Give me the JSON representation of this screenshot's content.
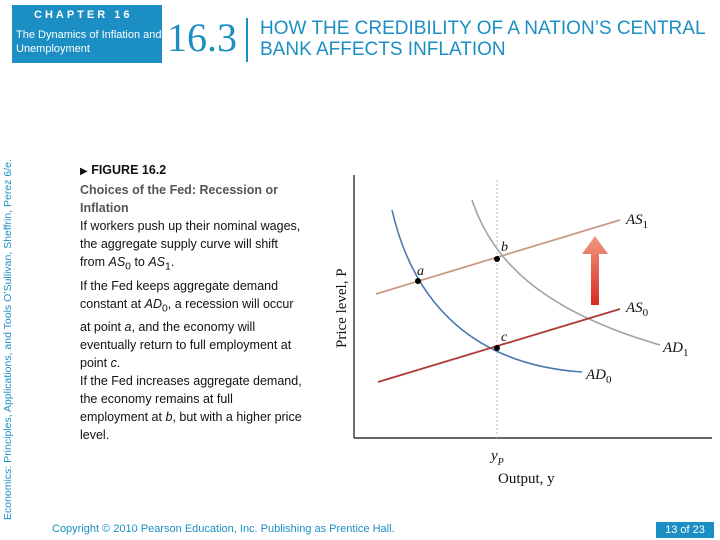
{
  "header": {
    "chapter_label": "CHAPTER 16",
    "chapter_subtitle": "The Dynamics of Inflation and Unemployment",
    "section_number": "16.3",
    "section_title": "HOW THE CREDIBILITY OF A NATION’S CENTRAL BANK AFFECTS INFLATION"
  },
  "side_text": "Economics: Principles, Applications, and Tools    O’Sullivan, Sheffrin, Perez    6/e.",
  "figure": {
    "label": "FIGURE 16.2",
    "title": "Choices of the Fed: Recession or Inflation",
    "p1_a": "If workers push up their nominal wages, the aggregate supply curve will shift from ",
    "p1_as0": "AS",
    "p1_as0_sub": "0",
    "p1_to": " to ",
    "p1_as1": "AS",
    "p1_as1_sub": "1",
    "p1_end": ".",
    "p2_a": "If the Fed keeps aggregate demand constant at ",
    "p2_ad": "AD",
    "p2_ad_sub": "0",
    "p2_b": ", a recession will occur at point ",
    "p2_point": "a",
    "p2_c": ", and the economy will eventually return to full employment at point ",
    "p2_point2": "c",
    "p2_end": ".",
    "p3_a": "If the Fed increases aggregate demand, the economy remains at full employment at ",
    "p3_point": "b",
    "p3_b": ", but with a higher price level."
  },
  "chart_data": {
    "type": "line",
    "xlabel": "Output, y",
    "ylabel": "Price level, P",
    "x_tick_label": "y",
    "x_tick_sub": "P",
    "series": [
      {
        "name": "AS1",
        "label": "AS",
        "sub": "1"
      },
      {
        "name": "AS0",
        "label": "AS",
        "sub": "0"
      },
      {
        "name": "AD1",
        "label": "AD",
        "sub": "1"
      },
      {
        "name": "AD0",
        "label": "AD",
        "sub": "0"
      }
    ],
    "points": [
      "a",
      "b",
      "c"
    ],
    "colors": {
      "as1": "#c99a86",
      "as0": "#b03a32",
      "ad0": "#4b78b0",
      "ad1": "#9fa3ad",
      "arrow": "#e05030",
      "guide": "#bbbbbb"
    }
  },
  "footer": {
    "copyright": "Copyright © 2010  Pearson Education, Inc. Publishing as Prentice Hall.",
    "page": "13 of 23"
  }
}
